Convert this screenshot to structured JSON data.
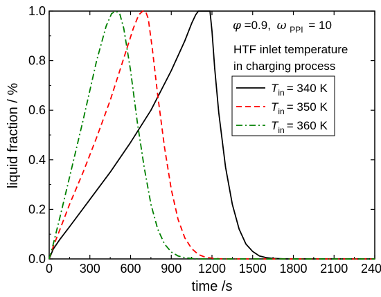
{
  "chart_data": {
    "type": "line",
    "title": "",
    "xlabel": "time /s",
    "ylabel": "liquid fraction / %",
    "xlim": [
      0,
      2400
    ],
    "ylim": [
      0,
      1.0
    ],
    "x_ticks": [
      0,
      300,
      600,
      900,
      1200,
      1500,
      1800,
      2100,
      2400
    ],
    "y_ticks": [
      0.0,
      0.2,
      0.4,
      0.6,
      0.8,
      1.0
    ],
    "x_tick_labels": [
      "0",
      "300",
      "600",
      "900",
      "1200",
      "1500",
      "1800",
      "2100",
      "2400"
    ],
    "y_tick_labels": [
      "0.0",
      "0.2",
      "0.4",
      "0.6",
      "0.8",
      "1.0"
    ],
    "grid": false,
    "annotation": {
      "phi_symbol": "φ",
      "phi_value": "=0.9,",
      "omega_symbol": "ω",
      "omega_subscript": "PPI",
      "omega_value": "= 10",
      "line1": "HTF inlet temperature",
      "line2": "in charging process"
    },
    "legend": {
      "position": "top-right",
      "entries": [
        {
          "symbol": "T",
          "subscript": "in",
          "text": "= 340 K",
          "color": "#000000",
          "dash": "solid"
        },
        {
          "symbol": "T",
          "subscript": "in",
          "text": "= 350 K",
          "color": "#ff0000",
          "dash": "dash"
        },
        {
          "symbol": "T",
          "subscript": "in",
          "text": "= 360 K",
          "color": "#008000",
          "dash": "dashdot"
        }
      ]
    },
    "series": [
      {
        "color": "#000000",
        "dash": "solid",
        "x": [
          0,
          30,
          80,
          150,
          300,
          450,
          600,
          750,
          900,
          1000,
          1050,
          1080,
          1100,
          1130,
          1150,
          1170,
          1185,
          1200,
          1220,
          1250,
          1300,
          1350,
          1400,
          1450,
          1500,
          1550,
          1600,
          1650,
          1700,
          1750,
          2400
        ],
        "y": [
          0,
          0.04,
          0.08,
          0.13,
          0.24,
          0.35,
          0.47,
          0.6,
          0.76,
          0.88,
          0.95,
          0.985,
          1.0,
          1.0,
          1.0,
          1.0,
          1.0,
          0.92,
          0.77,
          0.59,
          0.37,
          0.22,
          0.12,
          0.06,
          0.03,
          0.012,
          0.005,
          0.002,
          0.001,
          0,
          0
        ]
      },
      {
        "color": "#ff0000",
        "dash": "dash",
        "x": [
          0,
          30,
          80,
          150,
          250,
          350,
          450,
          550,
          620,
          660,
          690,
          710,
          730,
          760,
          800,
          850,
          900,
          950,
          1000,
          1050,
          1100,
          1150,
          1200,
          1250,
          1300,
          2400
        ],
        "y": [
          0,
          0.05,
          0.12,
          0.22,
          0.35,
          0.49,
          0.64,
          0.81,
          0.93,
          0.985,
          1.0,
          1.0,
          0.97,
          0.85,
          0.66,
          0.45,
          0.28,
          0.16,
          0.085,
          0.042,
          0.018,
          0.007,
          0.003,
          0.001,
          0,
          0
        ]
      },
      {
        "color": "#008000",
        "dash": "dashdot",
        "x": [
          0,
          30,
          80,
          150,
          250,
          350,
          420,
          460,
          490,
          520,
          550,
          600,
          650,
          700,
          750,
          800,
          850,
          900,
          950,
          1000,
          1050,
          1100,
          2400
        ],
        "y": [
          0,
          0.06,
          0.17,
          0.33,
          0.56,
          0.8,
          0.94,
          0.99,
          1.0,
          0.99,
          0.93,
          0.76,
          0.55,
          0.37,
          0.22,
          0.12,
          0.06,
          0.028,
          0.012,
          0.005,
          0.002,
          0,
          0
        ]
      }
    ]
  }
}
